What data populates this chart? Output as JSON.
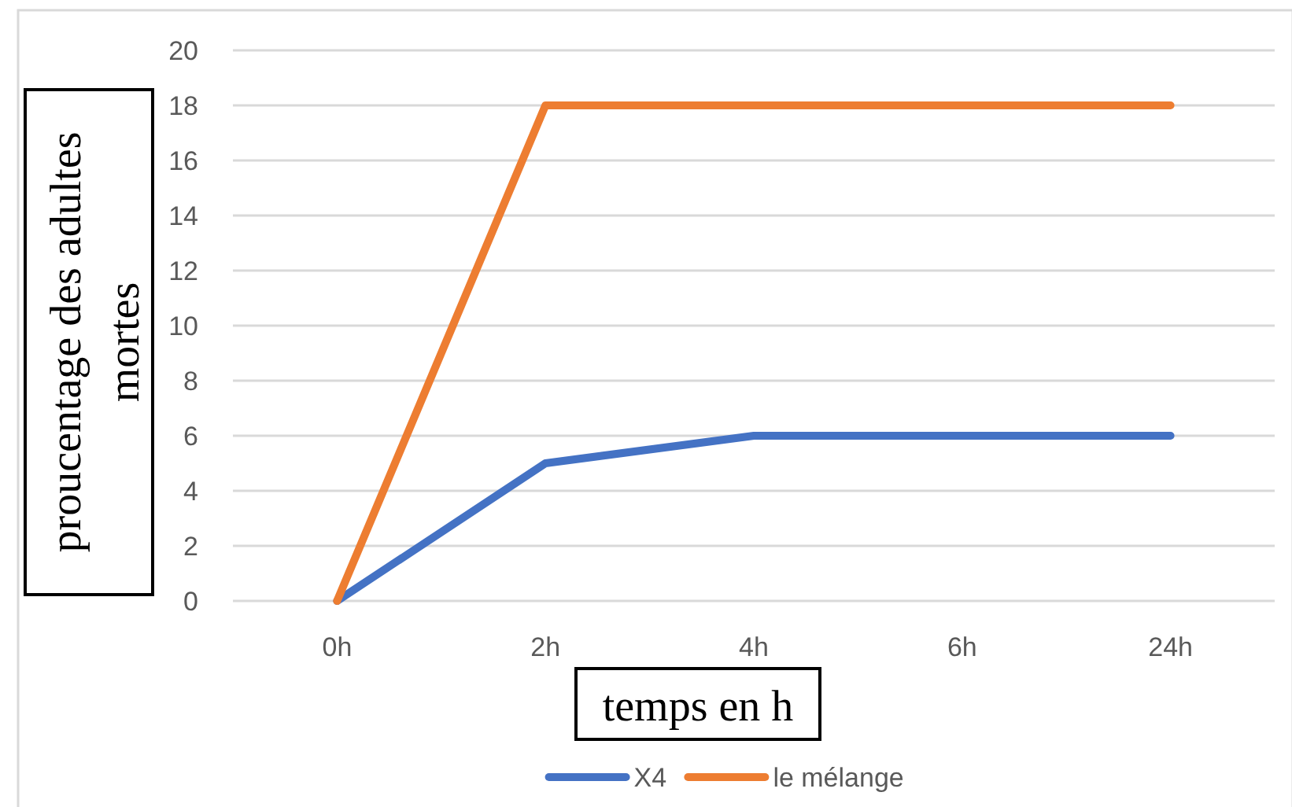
{
  "chart_data": {
    "type": "line",
    "categories": [
      "0h",
      "2h",
      "4h",
      "6h",
      "24h"
    ],
    "series": [
      {
        "name": "X4",
        "color": "#4472c4",
        "values": [
          0,
          5,
          6,
          6,
          6
        ]
      },
      {
        "name": "le mélange",
        "color": "#ed7d31",
        "values": [
          0,
          18,
          18,
          18,
          18
        ]
      }
    ],
    "xlabel": "temps en h",
    "ylabel": "proucentage des adultes mortes",
    "ylim": [
      0,
      20
    ],
    "yticks": [
      0,
      2,
      4,
      6,
      8,
      10,
      12,
      14,
      16,
      18,
      20
    ],
    "grid": "y",
    "legend": "bottom",
    "line_style": "solid"
  }
}
